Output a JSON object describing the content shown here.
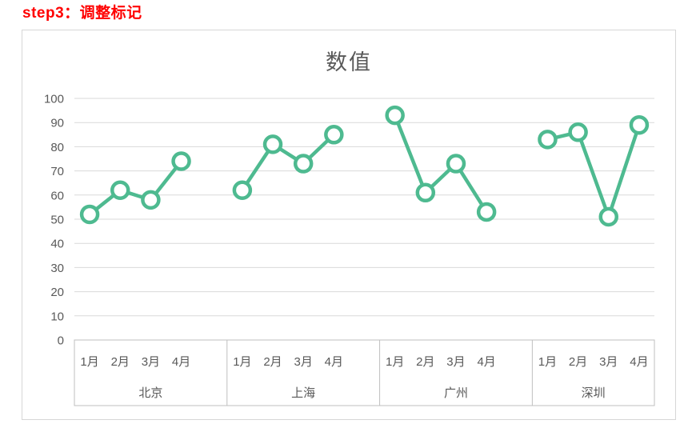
{
  "header": {
    "step_label": "step3：调整标记",
    "step_label_color": "#ff0000"
  },
  "chart_data": {
    "type": "line",
    "title": "数值",
    "categories": [
      "1月",
      "2月",
      "3月",
      "4月"
    ],
    "series": [
      {
        "name": "北京",
        "values": [
          52,
          62,
          58,
          74
        ]
      },
      {
        "name": "上海",
        "values": [
          62,
          81,
          73,
          85
        ]
      },
      {
        "name": "广州",
        "values": [
          93,
          61,
          73,
          53
        ]
      },
      {
        "name": "深圳",
        "values": [
          83,
          86,
          51,
          89
        ]
      }
    ],
    "yticks": [
      0,
      10,
      20,
      30,
      40,
      50,
      60,
      70,
      80,
      90,
      100
    ],
    "ylim": [
      0,
      100
    ],
    "grid": true,
    "legend": false,
    "panel_layout": "grouped-with-spacer-slot",
    "marker": "open-circle",
    "colors": {
      "series": "#4eba90",
      "gridline": "#d9d9d9",
      "axis_box": "#bfbfbf",
      "labels": "#595959",
      "title": "#595959"
    }
  }
}
